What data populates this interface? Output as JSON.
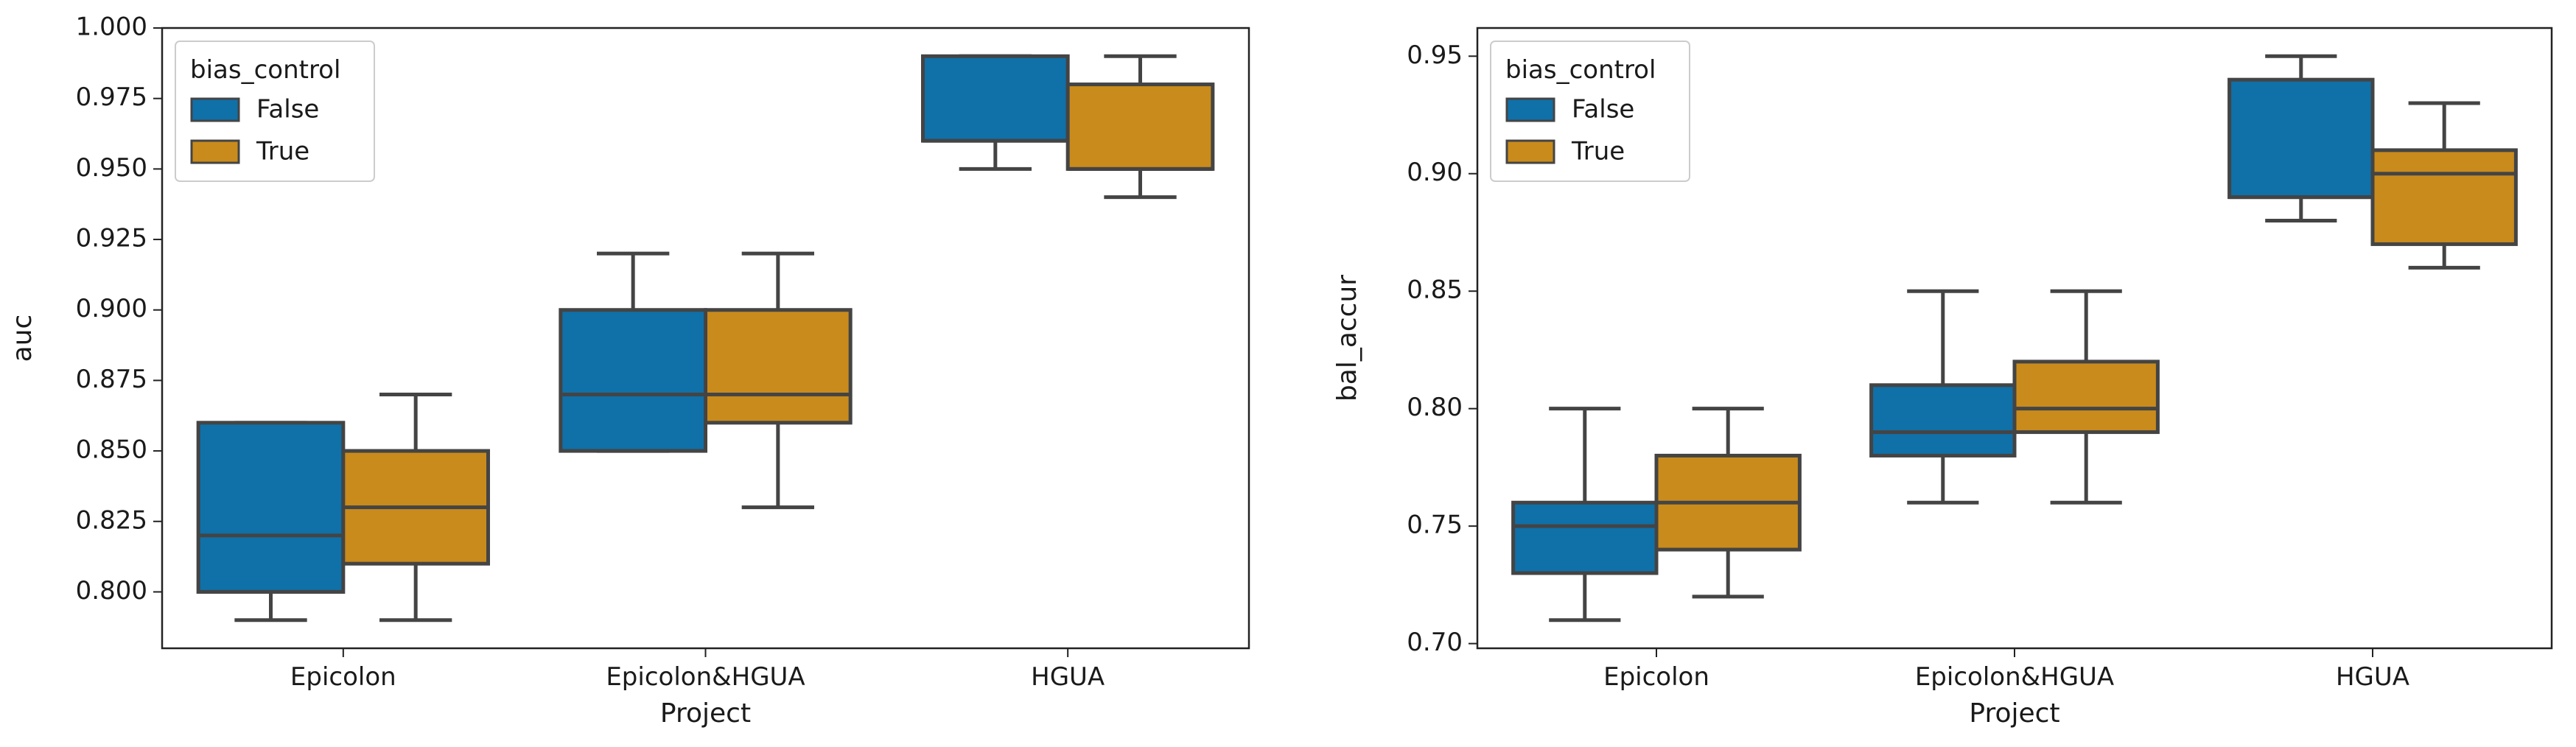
{
  "chart_data": [
    {
      "type": "box",
      "xlabel": "Project",
      "ylabel": "auc",
      "categories": [
        "Epicolon",
        "Epicolon&HGUA",
        "HGUA"
      ],
      "ylim": [
        0.78,
        1.0
      ],
      "yticks": [
        0.8,
        0.825,
        0.85,
        0.875,
        0.9,
        0.925,
        0.95,
        0.975,
        1.0
      ],
      "ytick_labels": [
        "0.800",
        "0.825",
        "0.850",
        "0.875",
        "0.900",
        "0.925",
        "0.950",
        "0.975",
        "1.000"
      ],
      "legend": {
        "title": "bias_control",
        "placement": "top-left"
      },
      "series": [
        {
          "name": "False",
          "color": "#1070a8",
          "boxes": [
            {
              "whisker_low": 0.79,
              "q1": 0.8,
              "median": 0.82,
              "q3": 0.86,
              "whisker_high": 0.86
            },
            {
              "whisker_low": 0.85,
              "q1": 0.85,
              "median": 0.87,
              "q3": 0.9,
              "whisker_high": 0.92
            },
            {
              "whisker_low": 0.95,
              "q1": 0.96,
              "median": 0.96,
              "q3": 0.99,
              "whisker_high": 0.99
            }
          ]
        },
        {
          "name": "True",
          "color": "#c98b1c",
          "boxes": [
            {
              "whisker_low": 0.79,
              "q1": 0.81,
              "median": 0.83,
              "q3": 0.85,
              "whisker_high": 0.87
            },
            {
              "whisker_low": 0.83,
              "q1": 0.86,
              "median": 0.87,
              "q3": 0.9,
              "whisker_high": 0.92
            },
            {
              "whisker_low": 0.94,
              "q1": 0.95,
              "median": 0.95,
              "q3": 0.98,
              "whisker_high": 0.99
            }
          ]
        }
      ]
    },
    {
      "type": "box",
      "xlabel": "Project",
      "ylabel": "bal_accur",
      "categories": [
        "Epicolon",
        "Epicolon&HGUA",
        "HGUA"
      ],
      "ylim": [
        0.698,
        0.962
      ],
      "yticks": [
        0.7,
        0.75,
        0.8,
        0.85,
        0.9,
        0.95
      ],
      "ytick_labels": [
        "0.70",
        "0.75",
        "0.80",
        "0.85",
        "0.90",
        "0.95"
      ],
      "legend": {
        "title": "bias_control",
        "placement": "top-left"
      },
      "series": [
        {
          "name": "False",
          "color": "#1070a8",
          "boxes": [
            {
              "whisker_low": 0.71,
              "q1": 0.73,
              "median": 0.75,
              "q3": 0.76,
              "whisker_high": 0.8
            },
            {
              "whisker_low": 0.76,
              "q1": 0.78,
              "median": 0.79,
              "q3": 0.81,
              "whisker_high": 0.85
            },
            {
              "whisker_low": 0.88,
              "q1": 0.89,
              "median": 0.89,
              "q3": 0.94,
              "whisker_high": 0.95
            }
          ]
        },
        {
          "name": "True",
          "color": "#c98b1c",
          "boxes": [
            {
              "whisker_low": 0.72,
              "q1": 0.74,
              "median": 0.76,
              "q3": 0.78,
              "whisker_high": 0.8
            },
            {
              "whisker_low": 0.76,
              "q1": 0.79,
              "median": 0.8,
              "q3": 0.82,
              "whisker_high": 0.85
            },
            {
              "whisker_low": 0.86,
              "q1": 0.87,
              "median": 0.9,
              "q3": 0.91,
              "whisker_high": 0.93
            }
          ]
        }
      ]
    }
  ]
}
